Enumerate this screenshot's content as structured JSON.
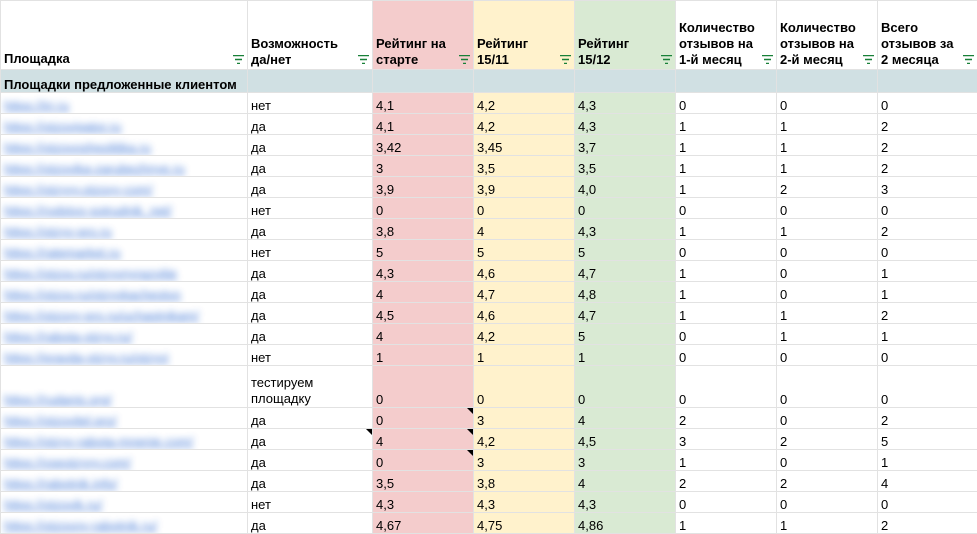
{
  "columns": [
    "Площадка",
    "Возможность да/нет",
    "Рейтинг на старте",
    "Рейтинг 15/11",
    "Рейтинг 15/12",
    "Количество отзывов на 1-й месяц",
    "Количество отзывов на 2-й месяц",
    "Всего отзывов за 2 месяца"
  ],
  "group_label": "Площадки предложенные клиентом",
  "rows": [
    {
      "site": "https://irr.ru",
      "avail": "нет",
      "r_start": "4,1",
      "r_1511": "4,2",
      "r_1512": "4,3",
      "rev1": "0",
      "rev2": "0",
      "total": "0"
    },
    {
      "site": "https://otzovigator.ru",
      "avail": "да",
      "r_start": "4,1",
      "r_1511": "4,2",
      "r_1512": "4,3",
      "rev1": "1",
      "rev2": "1",
      "total": "2"
    },
    {
      "site": "https://otzovoshpolitika.ru",
      "avail": "да",
      "r_start": "3,42",
      "r_1511": "3,45",
      "r_1512": "3,7",
      "rev1": "1",
      "rev2": "1",
      "total": "2"
    },
    {
      "site": "https://otzovika-zarubezhnye.ru",
      "avail": "да",
      "r_start": "3",
      "r_1511": "3,5",
      "r_1512": "3,5",
      "rev1": "1",
      "rev2": "1",
      "total": "2"
    },
    {
      "site": "https://otzyvy.otzovy-com/",
      "avail": "да",
      "r_start": "3,9",
      "r_1511": "3,9",
      "r_1512": "4,0",
      "rev1": "1",
      "rev2": "2",
      "total": "3"
    },
    {
      "site": "https://rodstvo-sotrudnik_net/",
      "avail": "нет",
      "r_start": "0",
      "r_1511": "0",
      "r_1512": "0",
      "rev1": "0",
      "rev2": "0",
      "total": "0"
    },
    {
      "site": "https://otzyv-pro.ru",
      "avail": "да",
      "r_start": "3,8",
      "r_1511": "4",
      "r_1512": "4,3",
      "rev1": "1",
      "rev2": "1",
      "total": "2"
    },
    {
      "site": "https://ratemarket.ru",
      "avail": "нет",
      "r_start": "5",
      "r_1511": "5",
      "r_1512": "5",
      "rev1": "0",
      "rev2": "0",
      "total": "0"
    },
    {
      "site": "https://otzov.ru/otzyvnyrazvitie",
      "avail": "да",
      "r_start": "4,3",
      "r_1511": "4,6",
      "r_1512": "4,7",
      "rev1": "1",
      "rev2": "0",
      "total": "1"
    },
    {
      "site": "https://otzov.ru/otzyvkachestvo",
      "avail": "да",
      "r_start": "4",
      "r_1511": "4,7",
      "r_1512": "4,8",
      "rev1": "1",
      "rev2": "0",
      "total": "1"
    },
    {
      "site": "https://otzovy-pro.ru/uchastnikam/",
      "avail": "да",
      "r_start": "4,5",
      "r_1511": "4,6",
      "r_1512": "4,7",
      "rev1": "1",
      "rev2": "1",
      "total": "2"
    },
    {
      "site": "https://rabota-otzyv.ru/",
      "avail": "да",
      "r_start": "4",
      "r_1511": "4,2",
      "r_1512": "5",
      "rev1": "0",
      "rev2": "1",
      "total": "1"
    },
    {
      "site": "https://pravda-otzyv.ru/otzyvi",
      "avail": "нет",
      "r_start": "1",
      "r_1511": "1",
      "r_1512": "1",
      "rev1": "0",
      "rev2": "0",
      "total": "0"
    },
    {
      "site": "https://rudanis.org/",
      "avail": "тестируем площадку",
      "r_start": "0",
      "r_1511": "0",
      "r_1512": "0",
      "rev1": "0",
      "rev2": "0",
      "total": "0",
      "tall": true
    },
    {
      "site": "https://otzovitel.pro/",
      "avail": "да",
      "r_start": "0",
      "r_1511": "3",
      "r_1512": "4",
      "rev1": "2",
      "rev2": "0",
      "total": "2",
      "note_start": true
    },
    {
      "site": "https://otzyv-rabota-mnenie.com/",
      "avail": "да",
      "r_start": "4",
      "r_1511": "4,2",
      "r_1512": "4,5",
      "rev1": "3",
      "rev2": "2",
      "total": "5",
      "note_avail": true,
      "note_start": true
    },
    {
      "site": "https://vseotzyvy.com/",
      "avail": "да",
      "r_start": "0",
      "r_1511": "3",
      "r_1512": "3",
      "rev1": "1",
      "rev2": "0",
      "total": "1",
      "note_start": true
    },
    {
      "site": "https://rabotnik.info/",
      "avail": "да",
      "r_start": "3,5",
      "r_1511": "3,8",
      "r_1512": "4",
      "rev1": "2",
      "rev2": "2",
      "total": "4"
    },
    {
      "site": "https://otzovik.ru/",
      "avail": "нет",
      "r_start": "4,3",
      "r_1511": "4,3",
      "r_1512": "4,3",
      "rev1": "0",
      "rev2": "0",
      "total": "0"
    },
    {
      "site": "https://otzovoy-rabotnik.ru/",
      "avail": "да",
      "r_start": "4,67",
      "r_1511": "4,75",
      "r_1512": "4,86",
      "rev1": "1",
      "rev2": "1",
      "total": "2"
    }
  ],
  "icons": {
    "filter": "filter-icon"
  },
  "colors": {
    "rating_start": "#f4cccc",
    "rating_1511": "#fff2cc",
    "rating_1512": "#d9ead3",
    "group_row": "#d0e0e3",
    "link": "#1155cc"
  }
}
